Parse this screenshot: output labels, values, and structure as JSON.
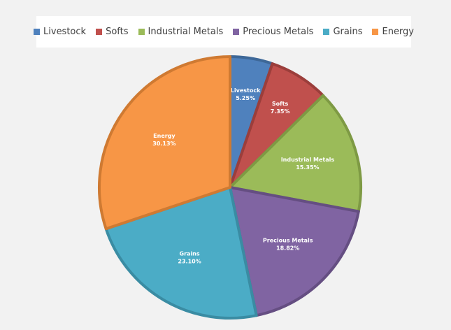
{
  "chart_data": {
    "type": "pie",
    "title": "",
    "legend_position": "top",
    "slices": [
      {
        "name": "Livestock",
        "value": 5.25,
        "label": "5.25%",
        "color": "#4f81bd",
        "stroke": "#3e6898"
      },
      {
        "name": "Softs",
        "value": 7.35,
        "label": "7.35%",
        "color": "#c0504d",
        "stroke": "#9b3e3b"
      },
      {
        "name": "Industrial Metals",
        "value": 15.35,
        "label": "15.35%",
        "color": "#9bbb59",
        "stroke": "#7e9a44"
      },
      {
        "name": "Precious Metals",
        "value": 18.82,
        "label": "18.82%",
        "color": "#8064a2",
        "stroke": "#654e82"
      },
      {
        "name": "Grains",
        "value": 23.1,
        "label": "23.10%",
        "color": "#4bacc6",
        "stroke": "#3a8ca3"
      },
      {
        "name": "Energy",
        "value": 30.13,
        "label": "30.13%",
        "color": "#f79646",
        "stroke": "#cf7a32"
      }
    ]
  }
}
